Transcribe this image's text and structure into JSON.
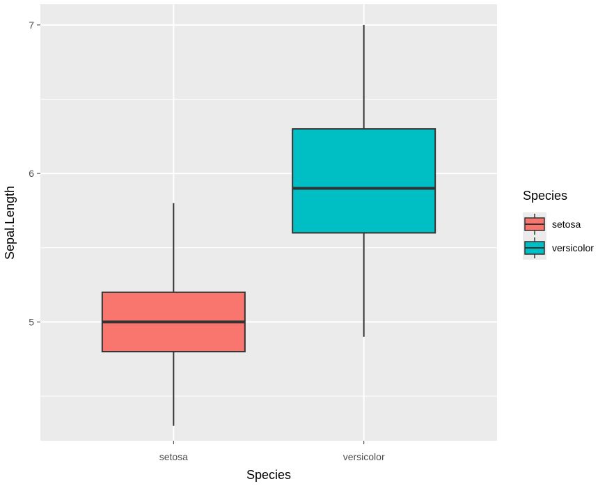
{
  "chart_data": {
    "type": "boxplot",
    "title": "",
    "xlabel": "Species",
    "ylabel": "Sepal.Length",
    "ylim": [
      4.2,
      7.14
    ],
    "yticks": [
      5,
      6,
      7
    ],
    "yminor": [
      4.5,
      5.5,
      6.5
    ],
    "categories": [
      "setosa",
      "versicolor"
    ],
    "boxes": [
      {
        "category": "setosa",
        "min": 4.3,
        "q1": 4.8,
        "median": 5.0,
        "q3": 5.2,
        "max": 5.8,
        "fill": "#F8766D"
      },
      {
        "category": "versicolor",
        "min": 4.9,
        "q1": 5.6,
        "median": 5.9,
        "q3": 6.3,
        "max": 7.0,
        "fill": "#00BFC4"
      }
    ],
    "legend": {
      "title": "Species",
      "entries": [
        {
          "label": "setosa",
          "color": "#F8766D"
        },
        {
          "label": "versicolor",
          "color": "#00BFC4"
        }
      ]
    },
    "colors": {
      "panel": "#EBEBEB",
      "grid": "#FFFFFF",
      "outline": "#333333"
    }
  }
}
